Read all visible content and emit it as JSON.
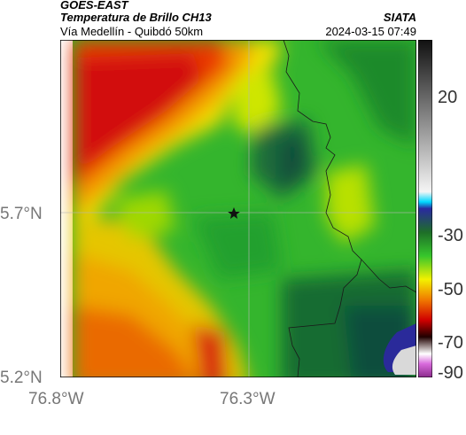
{
  "header": {
    "source": "GOES-EAST",
    "product": "Temperatura de Brillo CH13",
    "region": "Vía Medellín - Quibdó 50km",
    "brand": "SIATA",
    "datetime": "2024-03-15 07:49"
  },
  "map": {
    "lat_ticks": [
      "5.7°N",
      "5.2°N"
    ],
    "lon_ticks": [
      "76.8°W",
      "76.3°W"
    ],
    "marker_icon": "star-icon"
  },
  "colorbar": {
    "labels": [
      "20",
      "-30",
      "-50",
      "-70",
      "-90"
    ]
  }
}
